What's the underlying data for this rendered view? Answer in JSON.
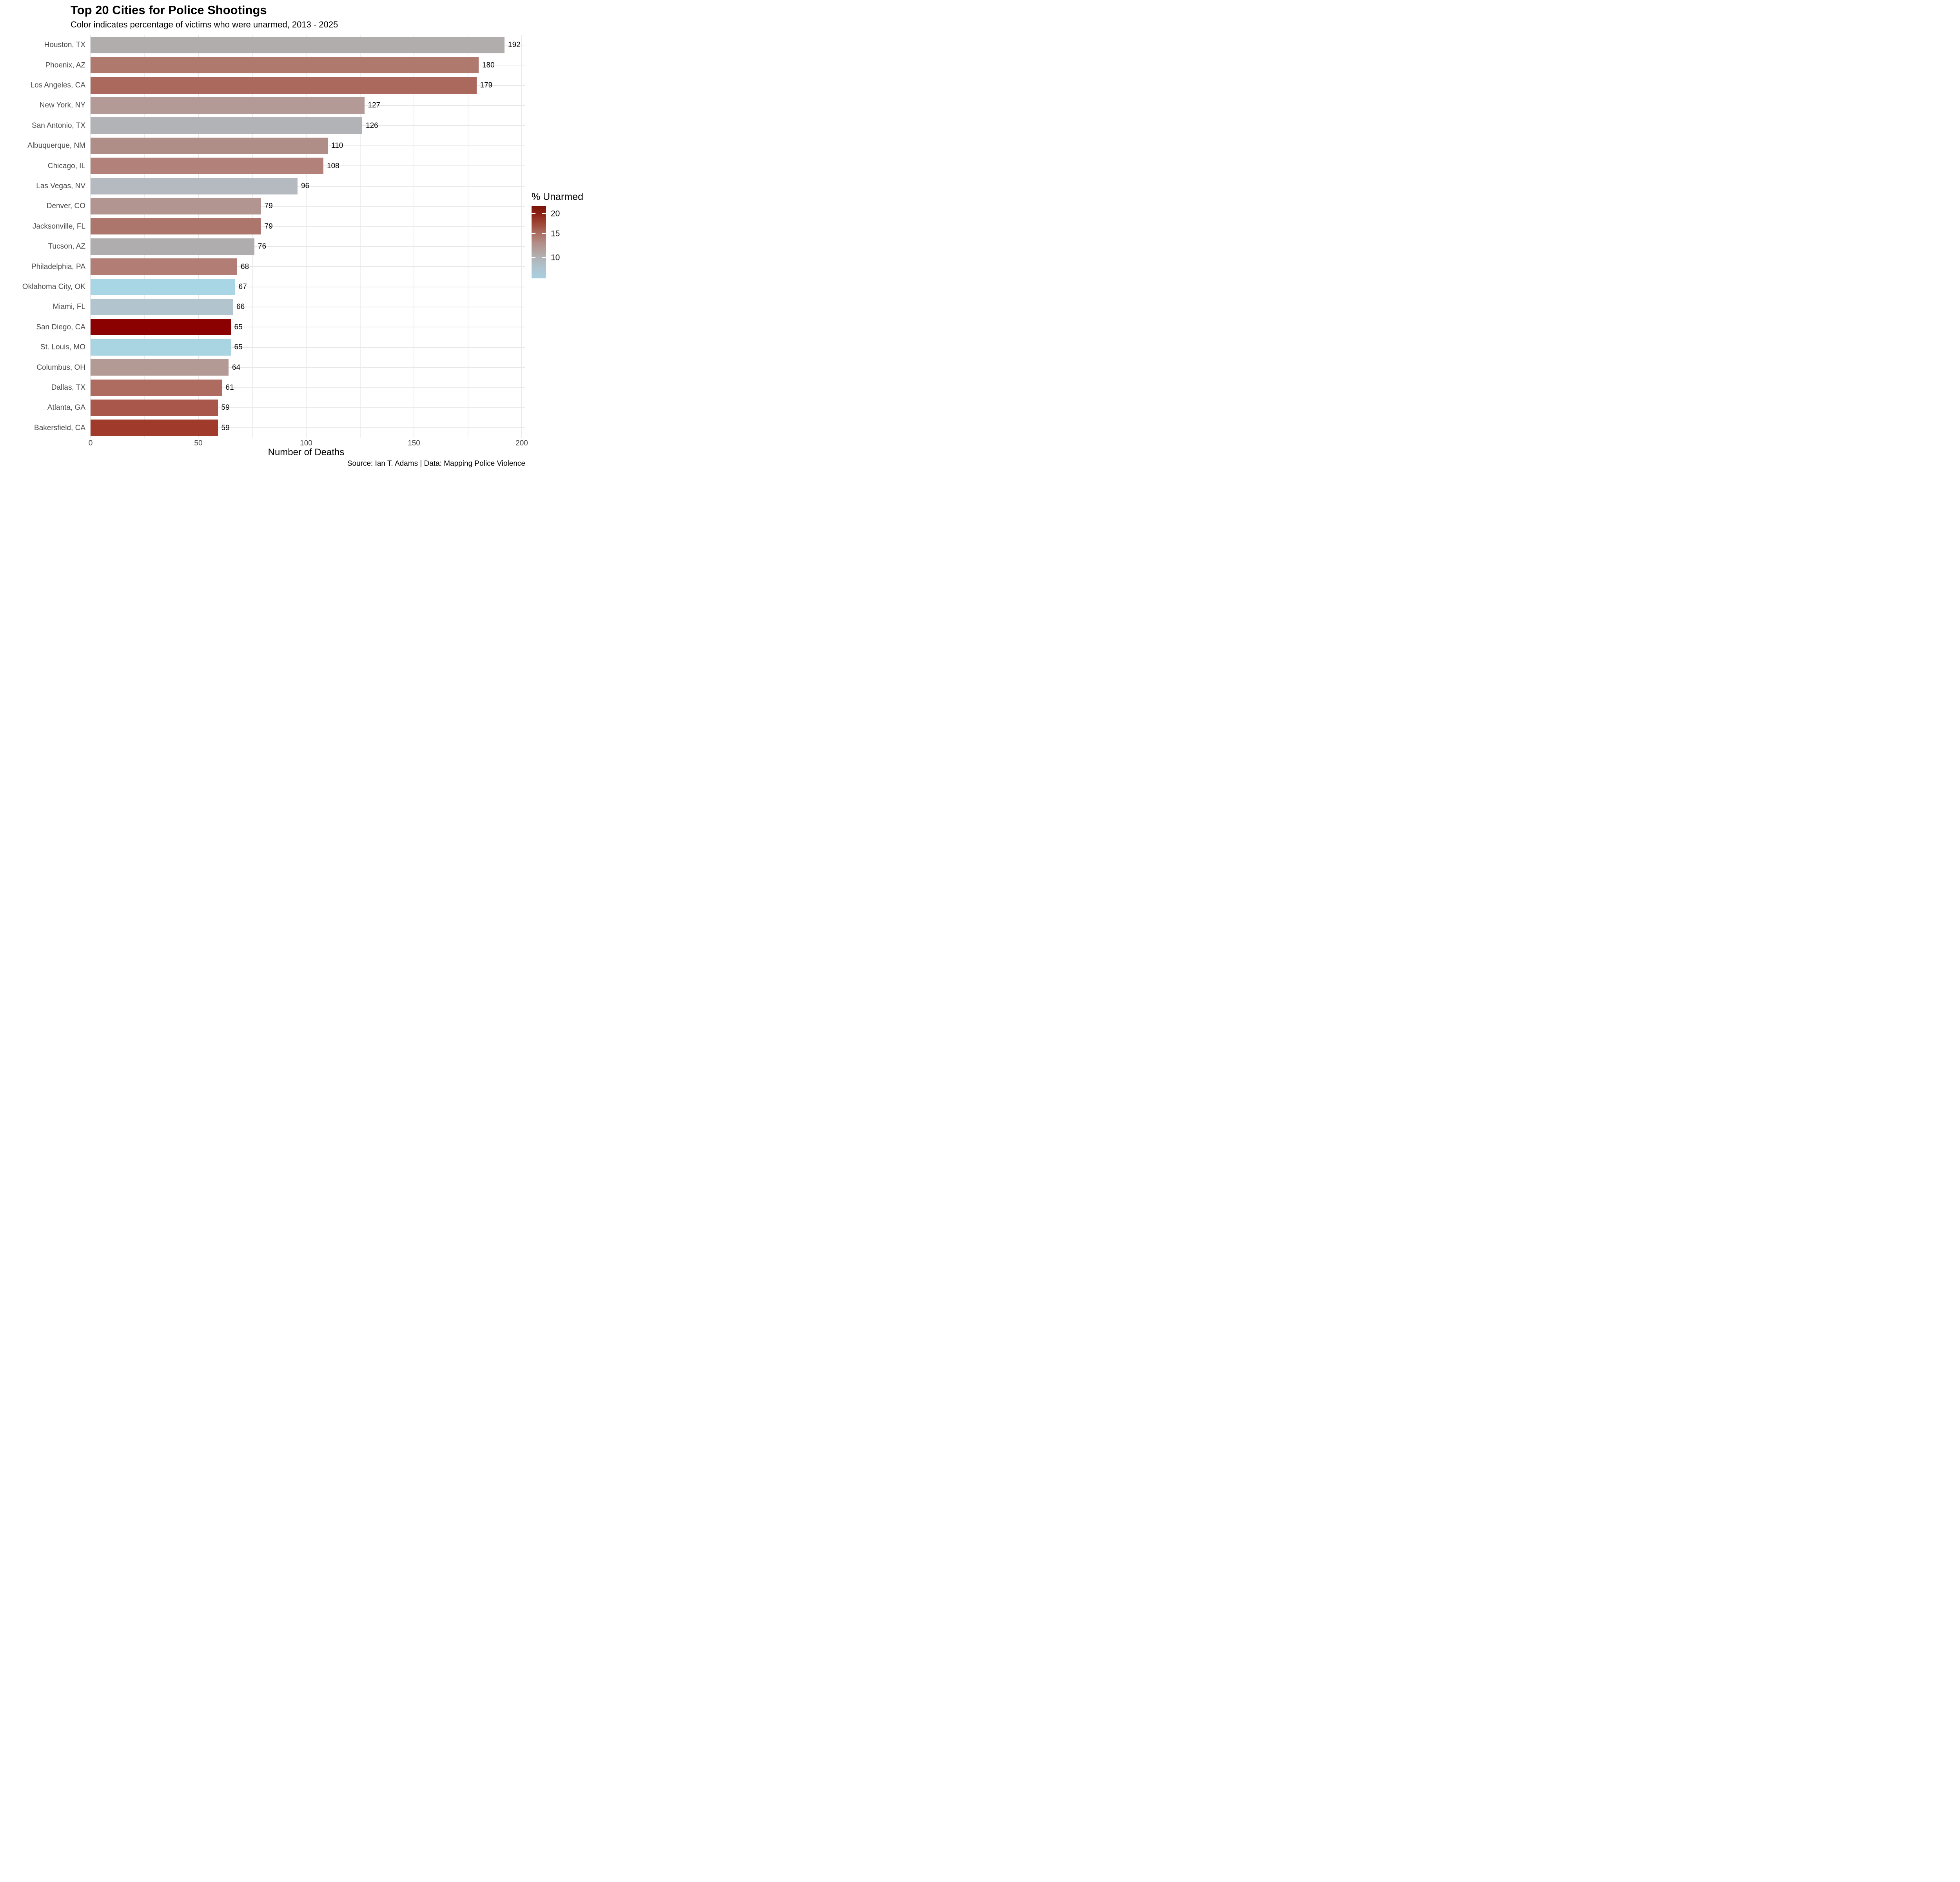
{
  "chart_data": {
    "type": "bar",
    "orientation": "horizontal",
    "title": "Top 20 Cities for Police Shootings",
    "subtitle": "Color indicates percentage of victims who were unarmed, 2013 - 2025",
    "xlabel": "Number of Deaths",
    "xlim": [
      0,
      201.6
    ],
    "x_major_ticks": [
      0,
      50,
      100,
      150,
      200
    ],
    "x_minor_gridlines": [
      25,
      75,
      125,
      175
    ],
    "grid": "major and minor vertical, major horizontal per category",
    "legend_position": "right",
    "categories": [
      "Houston, TX",
      "Phoenix, AZ",
      "Los Angeles, CA",
      "New York, NY",
      "San Antonio, TX",
      "Albuquerque, NM",
      "Chicago, IL",
      "Las Vegas, NV",
      "Denver, CO",
      "Jacksonville, FL",
      "Tucson, AZ",
      "Philadelphia, PA",
      "Oklahoma City, OK",
      "Miami, FL",
      "San Diego, CA",
      "St. Louis, MO",
      "Columbus, OH",
      "Dallas, TX",
      "Atlanta, GA",
      "Bakersfield, CA"
    ],
    "values": [
      192,
      180,
      179,
      127,
      126,
      110,
      108,
      96,
      79,
      79,
      76,
      68,
      67,
      66,
      65,
      65,
      64,
      61,
      59,
      59
    ],
    "bar_colors": [
      "#b1adad",
      "#af796e",
      "#ab695e",
      "#b39a97",
      "#b2b3b6",
      "#b08e88",
      "#b28179",
      "#b4bac0",
      "#b29490",
      "#ad766c",
      "#b0adae",
      "#b17d75",
      "#a9d6e5",
      "#b2c5ce",
      "#8b0000",
      "#a9d5e3",
      "#b39a95",
      "#ae6c61",
      "#a9574a",
      "#a03b2c"
    ],
    "value_labels": [
      "192",
      "180",
      "179",
      "127",
      "126",
      "110",
      "108",
      "96",
      "79",
      "79",
      "76",
      "68",
      "67",
      "66",
      "65",
      "65",
      "64",
      "61",
      "59",
      "59"
    ],
    "legend": {
      "title": "% Unarmed",
      "ticks": [
        "20",
        "15",
        "10"
      ],
      "tick_fractions_from_top": [
        0.108,
        0.386,
        0.716
      ],
      "gradient_top_to_bottom": [
        "#7a120a",
        "#8c2214",
        "#9d4434",
        "#ab6f64",
        "#b28f89",
        "#b2a7a5",
        "#b1b3b6",
        "#aec4cf",
        "#a9cfdf"
      ],
      "gradient_stop_percents": [
        0,
        10.8,
        24,
        38.6,
        52,
        65,
        71.6,
        85,
        100
      ],
      "high_color": "#8b0000",
      "mid_color": "#b2aeae",
      "low_color": "#a9d6e5"
    },
    "source": "Source: Ian T. Adams | Data: Mapping Police Violence"
  }
}
